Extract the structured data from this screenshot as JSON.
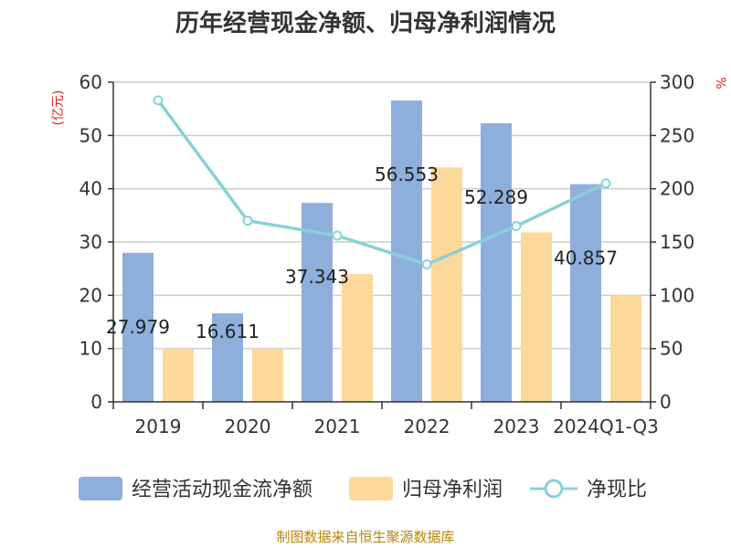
{
  "chart_data": {
    "type": "bar",
    "title": "历年经营现金净额、归母净利润情况",
    "categories": [
      "2019",
      "2020",
      "2021",
      "2022",
      "2023",
      "2024Q1-Q3"
    ],
    "y_left": {
      "unit": "(亿元)",
      "ylim": [
        0,
        60
      ],
      "ticks": [
        "0",
        "10",
        "20",
        "30",
        "40",
        "50",
        "60"
      ]
    },
    "y_right": {
      "unit": "%",
      "ylim": [
        0,
        300
      ],
      "ticks": [
        "0",
        "50",
        "100",
        "150",
        "200",
        "250",
        "300"
      ]
    },
    "grid": true,
    "legend_position": "bottom",
    "series": [
      {
        "name": "经营活动现金流净额",
        "type": "bar",
        "axis": "left",
        "color": "#8eaedb",
        "values": [
          27.979,
          16.611,
          37.343,
          56.553,
          52.289,
          40.857
        ],
        "labels": [
          "27.979",
          "16.611",
          "37.343",
          "56.553",
          "52.289",
          "40.857"
        ]
      },
      {
        "name": "归母净利润",
        "type": "bar",
        "axis": "left",
        "color": "#fdd89b",
        "values": [
          10.0,
          10.0,
          24.0,
          44.0,
          31.8,
          20.0
        ]
      },
      {
        "name": "净现比",
        "type": "line",
        "axis": "right",
        "color": "#88d1d8",
        "values": [
          283,
          170,
          156,
          129,
          165,
          205
        ]
      }
    ],
    "source": "制图数据来自恒生聚源数据库"
  }
}
